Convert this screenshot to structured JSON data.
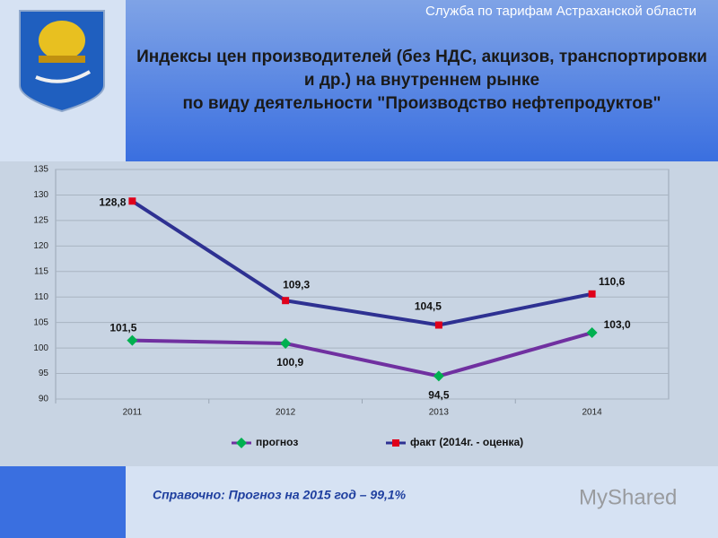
{
  "header": {
    "organization": "Служба по тарифам Астраханской области"
  },
  "chart_data": {
    "type": "line",
    "title": "Индексы цен производителей (без НДС, акцизов, транспортировки и др.) на внутреннем  рынке по виду деятельности \"Производство нефтепродуктов\"",
    "categories": [
      "2011",
      "2012",
      "2013",
      "2014"
    ],
    "series": [
      {
        "name": "прогноз",
        "color": "#7030a0",
        "marker_color": "#00b050",
        "values": [
          101.5,
          100.9,
          94.5,
          103.0
        ],
        "value_labels": [
          "101,5",
          "100,9",
          "94,5",
          "103,0"
        ]
      },
      {
        "name": "факт (2014г. - оценка)",
        "color": "#2e3192",
        "marker_color": "#e0001a",
        "values": [
          128.8,
          109.3,
          104.5,
          110.6
        ],
        "value_labels": [
          "128,8",
          "109,3",
          "104,5",
          "110,6"
        ]
      }
    ],
    "ylim": [
      90,
      135
    ],
    "yticks": [
      90,
      95,
      100,
      105,
      110,
      115,
      120,
      125,
      130,
      135
    ],
    "grid": true
  },
  "footer": {
    "note": "Справочно: Прогноз на 2015 год – 99,1%",
    "watermark": "MyShared"
  }
}
